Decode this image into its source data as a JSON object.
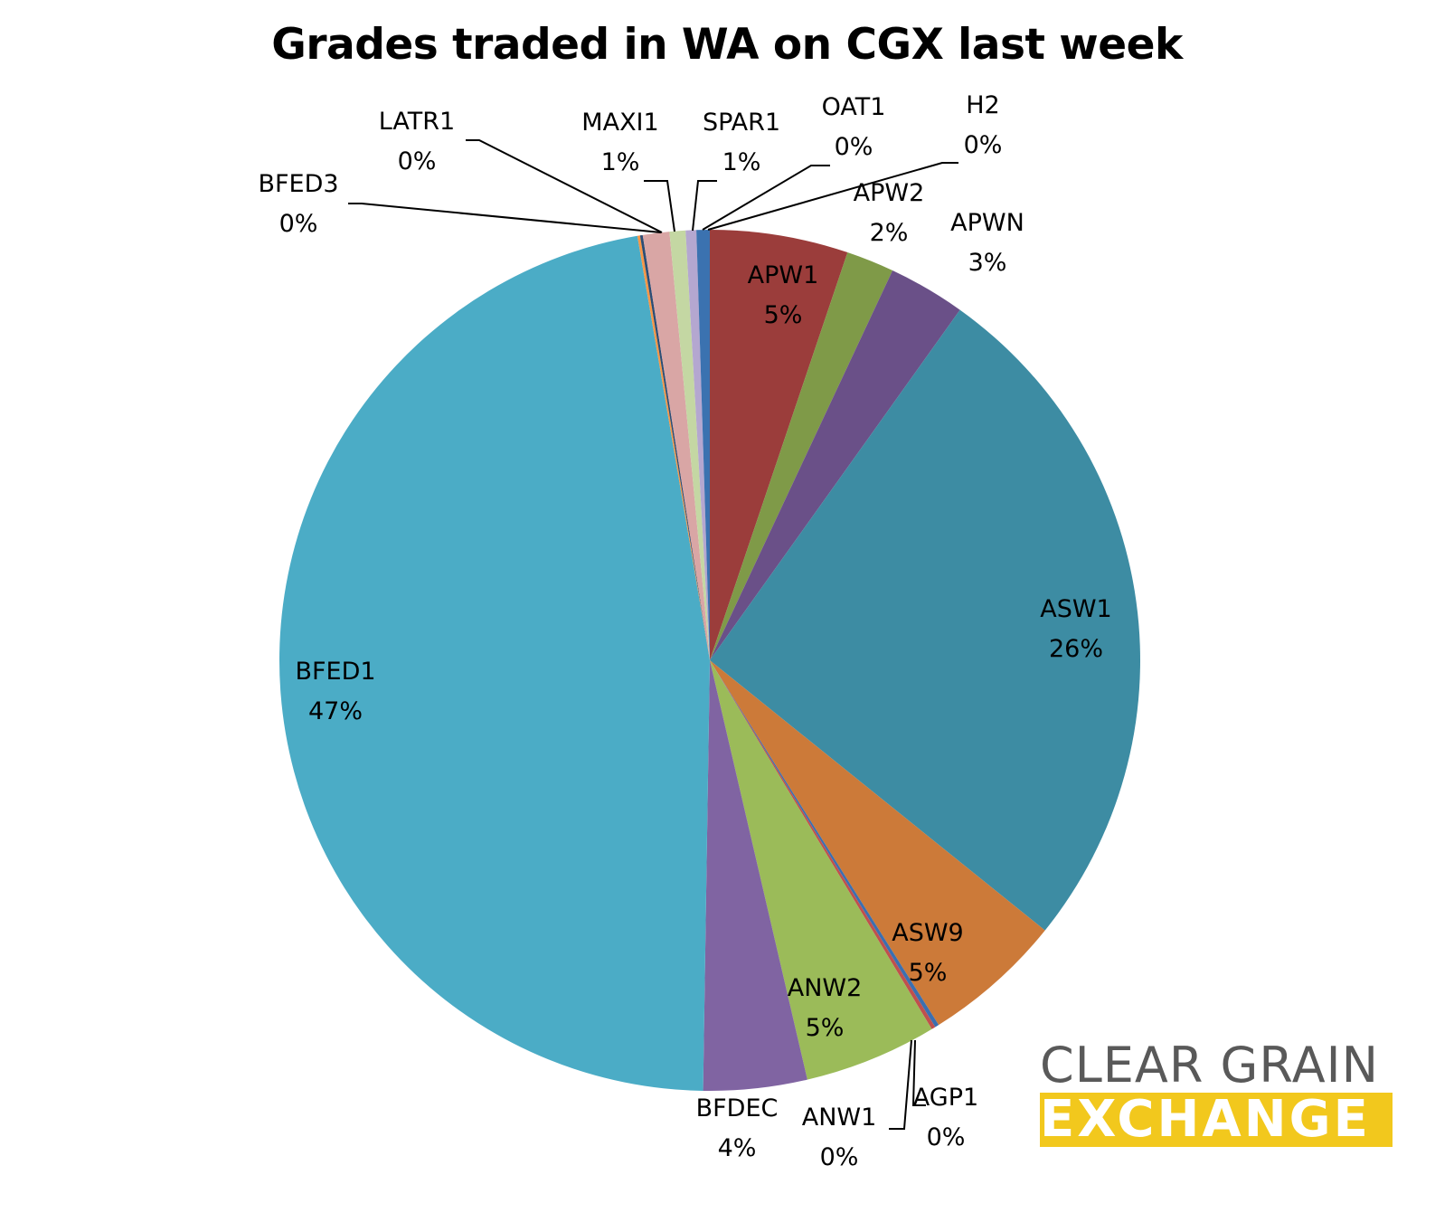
{
  "chart_data": {
    "type": "pie",
    "title": "Grades traded in WA on CGX last week",
    "start": "top",
    "direction": "clockwise",
    "slices": [
      {
        "label": "APW1",
        "value": 5.2,
        "pct_label": "5%",
        "color": "#9b3d3b",
        "label_mode": "inside"
      },
      {
        "label": "APW2",
        "value": 1.8,
        "pct_label": "2%",
        "color": "#7f9a48",
        "label_mode": "outside"
      },
      {
        "label": "APWN",
        "value": 2.9,
        "pct_label": "3%",
        "color": "#6a5088",
        "label_mode": "outside"
      },
      {
        "label": "ASW1",
        "value": 26.0,
        "pct_label": "26%",
        "color": "#3d8ca3",
        "label_mode": "inside"
      },
      {
        "label": "ASW9",
        "value": 5.3,
        "pct_label": "5%",
        "color": "#cc7a39",
        "label_mode": "inside"
      },
      {
        "label": "AGP1",
        "value": 0.15,
        "pct_label": "0%",
        "color": "#3b6fb0",
        "label_mode": "leader"
      },
      {
        "label": "ANW1",
        "value": 0.15,
        "pct_label": "0%",
        "color": "#c0504d",
        "label_mode": "leader"
      },
      {
        "label": "ANW2",
        "value": 5.0,
        "pct_label": "5%",
        "color": "#9bbb59",
        "label_mode": "inside"
      },
      {
        "label": "BFDEC",
        "value": 3.9,
        "pct_label": "4%",
        "color": "#8064a2",
        "label_mode": "outside"
      },
      {
        "label": "BFED1",
        "value": 47.2,
        "pct_label": "47%",
        "color": "#4bacc6",
        "label_mode": "inside"
      },
      {
        "label": "BFED3",
        "value": 0.1,
        "pct_label": "0%",
        "color": "#f79646",
        "label_mode": "leader"
      },
      {
        "label": "LATR1",
        "value": 0.1,
        "pct_label": "0%",
        "color": "#2c4d75",
        "label_mode": "leader"
      },
      {
        "label": "MAXI1",
        "value": 1.0,
        "pct_label": "1%",
        "color": "#d9a6a5",
        "label_mode": "leader"
      },
      {
        "label": "SPAR1",
        "value": 0.6,
        "pct_label": "1%",
        "color": "#c4d7a3",
        "label_mode": "leader"
      },
      {
        "label": "OAT1",
        "value": 0.4,
        "pct_label": "0%",
        "color": "#b4a7d0",
        "label_mode": "leader"
      },
      {
        "label": "H2",
        "value": 0.5,
        "pct_label": "0%",
        "color": "#3b72b0",
        "label_mode": "leader"
      }
    ]
  },
  "logo": {
    "line1": "CLEAR GRAIN",
    "line2": "EXCHANGE"
  }
}
